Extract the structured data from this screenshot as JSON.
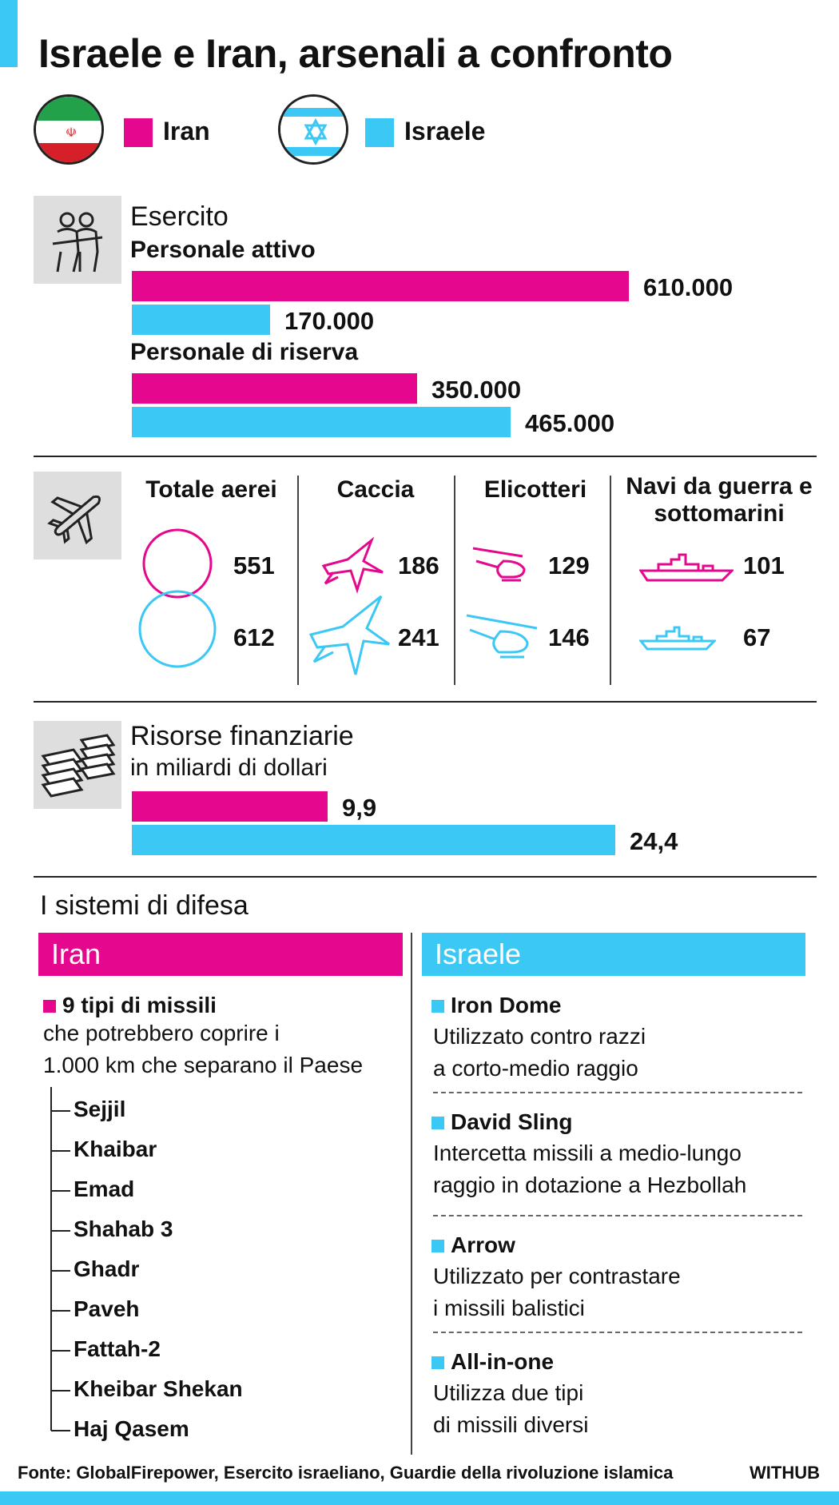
{
  "title": "Israele e Iran, arsenali a confronto",
  "legend": [
    {
      "label": "Iran",
      "color": "#e5078d"
    },
    {
      "label": "Israele",
      "color": "#3cc8f4"
    }
  ],
  "army": {
    "title": "Esercito",
    "active_label": "Personale attivo",
    "reserve_label": "Personale di riserva"
  },
  "finance": {
    "title": "Risorse finanziarie",
    "subtitle": "in miliardi di dollari"
  },
  "assets": {
    "columns": [
      "Totale aerei",
      "Caccia",
      "Elicotteri",
      "Navi da guerra e sottomarini"
    ],
    "iran": [
      "551",
      "186",
      "129",
      "101"
    ],
    "israel": [
      "612",
      "241",
      "146",
      "67"
    ]
  },
  "defense": {
    "title": "I sistemi di difesa",
    "iran": {
      "header": "Iran",
      "lead": "9 tipi di missili",
      "text1": "che potrebbero coprire i",
      "text2": "1.000 km che separano il Paese",
      "missiles": [
        "Sejjil",
        "Khaibar",
        "Emad",
        "Shahab 3",
        "Ghadr",
        "Paveh",
        "Fattah-2",
        "Kheibar Shekan",
        "Haj Qasem"
      ]
    },
    "israel": {
      "header": "Israele",
      "systems": [
        {
          "name": "Iron Dome",
          "line1": "Utilizzato contro razzi",
          "line2": "a corto-medio raggio"
        },
        {
          "name": "David Sling",
          "line1": "Intercetta missili a medio-lungo",
          "line2": "raggio in dotazione a Hezbollah"
        },
        {
          "name": "Arrow",
          "line1": "Utilizzato per contrastare",
          "line2": "i missili balistici"
        },
        {
          "name": "All-in-one",
          "line1": "Utilizza due tipi",
          "line2": "di missili diversi"
        }
      ]
    }
  },
  "source": "Fonte: GlobalFirepower, Esercito israeliano, Guardie della rivoluzione islamica",
  "brand": "WITHUB",
  "chart_data": [
    {
      "type": "bar",
      "orientation": "horizontal",
      "title": "Esercito",
      "categories": [
        "Personale attivo",
        "Personale di riserva"
      ],
      "series": [
        {
          "name": "Iran",
          "values": [
            610000,
            350000
          ],
          "labels": [
            "610.000",
            "350.000"
          ]
        },
        {
          "name": "Israele",
          "values": [
            170000,
            465000
          ],
          "labels": [
            "170.000",
            "465.000"
          ]
        }
      ]
    },
    {
      "type": "table",
      "columns": [
        "Totale aerei",
        "Caccia",
        "Elicotteri",
        "Navi da guerra e sottomarini"
      ],
      "series": [
        {
          "name": "Iran",
          "values": [
            551,
            186,
            129,
            101
          ]
        },
        {
          "name": "Israele",
          "values": [
            612,
            241,
            146,
            67
          ]
        }
      ]
    },
    {
      "type": "bar",
      "orientation": "horizontal",
      "title": "Risorse finanziarie",
      "subtitle": "in miliardi di dollari",
      "categories": [
        ""
      ],
      "series": [
        {
          "name": "Iran",
          "values": [
            9.9
          ],
          "labels": [
            "9,9"
          ]
        },
        {
          "name": "Israele",
          "values": [
            24.4
          ],
          "labels": [
            "24,4"
          ]
        }
      ]
    }
  ]
}
